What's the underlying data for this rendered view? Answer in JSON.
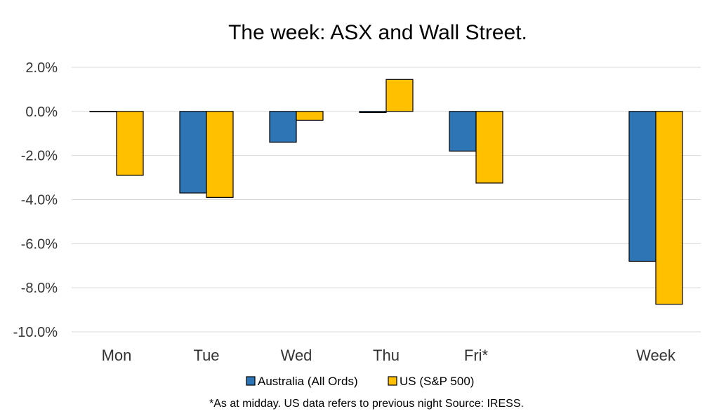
{
  "chart_data": {
    "type": "bar",
    "title": "The week:  ASX and Wall Street.",
    "categories": [
      "Mon",
      "Tue",
      "Wed",
      "Thu",
      "Fri*",
      "",
      "Week"
    ],
    "series": [
      {
        "name": "Australia (All Ords)",
        "color": "#2e75b6",
        "values": [
          0.0,
          -3.7,
          -1.4,
          -0.05,
          -1.8,
          null,
          -6.8
        ]
      },
      {
        "name": "US (S&P 500)",
        "color": "#ffc000",
        "values": [
          -2.9,
          -3.9,
          -0.4,
          1.45,
          -3.25,
          null,
          -8.75
        ]
      }
    ],
    "ylim": [
      -10,
      2
    ],
    "yticks": [
      "2.0%",
      "0.0%",
      "-2.0%",
      "-4.0%",
      "-6.0%",
      "-8.0%",
      "-10.0%"
    ],
    "ytick_values": [
      2,
      0,
      -2,
      -4,
      -6,
      -8,
      -10
    ],
    "grid": true,
    "legend_position": "bottom",
    "footnote": "*As at midday. US data refers to previous night  Source:  IRESS."
  }
}
